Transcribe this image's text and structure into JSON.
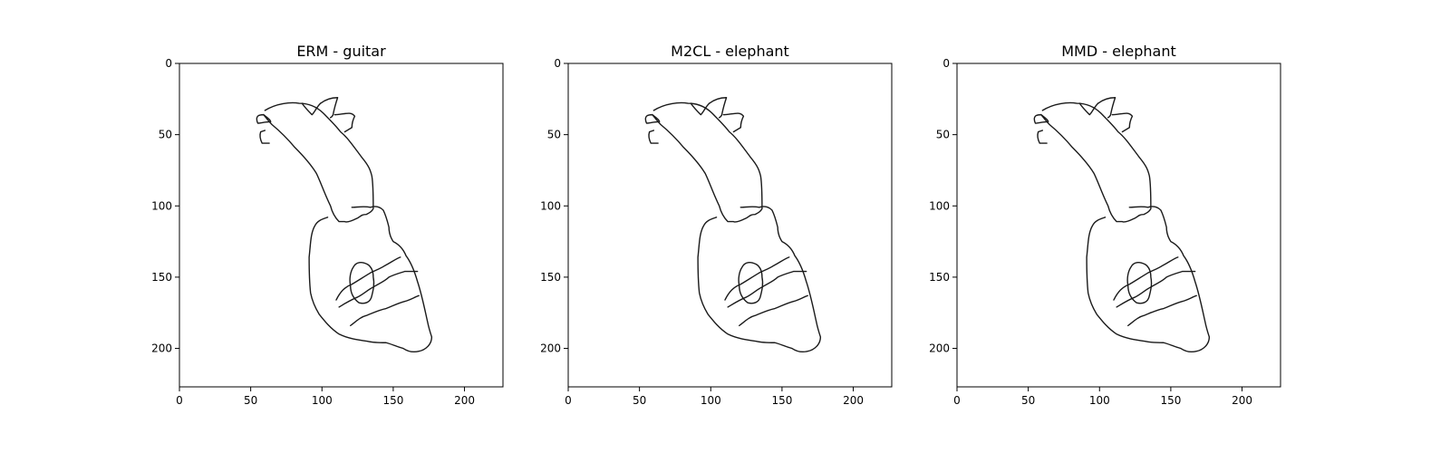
{
  "figure": {
    "panels": [
      {
        "title": "ERM - guitar"
      },
      {
        "title": "M2CL - elephant"
      },
      {
        "title": "MMD - elephant"
      }
    ],
    "x_ticks": [
      "0",
      "50",
      "100",
      "150",
      "200"
    ],
    "y_ticks": [
      "0",
      "50",
      "100",
      "150",
      "200"
    ],
    "colors": {
      "stroke": "#1a1a1a",
      "frame": "#000000",
      "background": "#ffffff"
    }
  }
}
